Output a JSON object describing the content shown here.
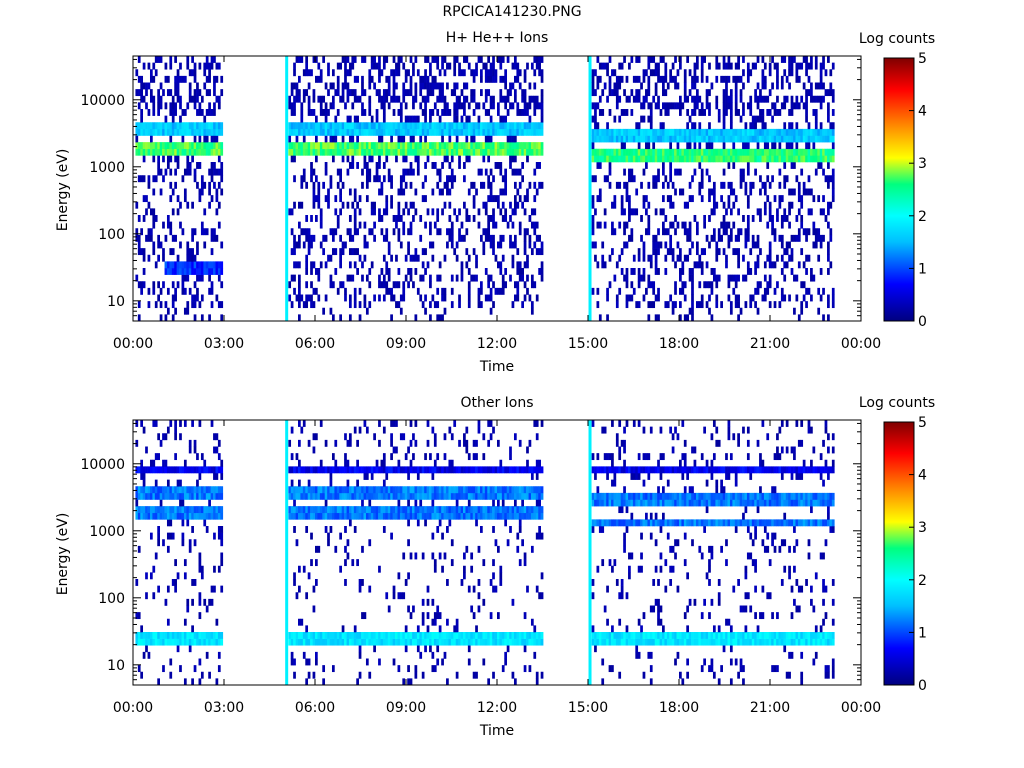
{
  "figure_title": "RPCICA141230.PNG",
  "colors": {
    "colormap": [
      "#00008b",
      "#0000ff",
      "#00bfff",
      "#00ffff",
      "#00ff7f",
      "#ffff00",
      "#ff8c00",
      "#ff0000",
      "#8b0000"
    ],
    "background": "#ffffff",
    "axis": "#000000"
  },
  "chart_data": [
    {
      "type": "heatmap",
      "title": "H+ He++ Ions",
      "xlabel": "Time",
      "ylabel": "Energy (eV)",
      "yscale": "log",
      "ylim": [
        5,
        45000
      ],
      "xlim": [
        0,
        24
      ],
      "x_tick_labels": [
        "00:00",
        "03:00",
        "06:00",
        "09:00",
        "12:00",
        "15:00",
        "18:00",
        "21:00",
        "00:00"
      ],
      "x_ticks_hours": [
        0,
        3,
        6,
        9,
        12,
        15,
        18,
        21,
        24
      ],
      "y_tick_labels": [
        "10",
        "100",
        "1000",
        "10000"
      ],
      "y_ticks": [
        10,
        100,
        1000,
        10000
      ],
      "colorbar": {
        "label": "Log counts",
        "min": 0,
        "max": 5,
        "tick_labels": [
          "0",
          "1",
          "2",
          "3",
          "4",
          "5"
        ]
      },
      "data_intervals_hours": [
        [
          0.05,
          2.9
        ],
        [
          5.1,
          13.45
        ],
        [
          15.05,
          23.1
        ]
      ],
      "spike_times_hours": [
        5.05,
        15.05
      ],
      "bands": [
        {
          "energy_eV": 1800,
          "level": 2.7,
          "intervals": [
            [
              0.05,
              2.9
            ],
            [
              5.1,
              13.45
            ]
          ]
        },
        {
          "energy_eV": 1500,
          "level": 2.6,
          "intervals": [
            [
              15.05,
              23.1
            ]
          ]
        },
        {
          "energy_eV": 4000,
          "level": 1.6,
          "intervals": [
            [
              0.05,
              2.9
            ],
            [
              5.1,
              13.45
            ]
          ]
        },
        {
          "energy_eV": 3000,
          "level": 1.6,
          "intervals": [
            [
              15.05,
              23.1
            ]
          ]
        },
        {
          "energy_eV": 30,
          "level": 0.9,
          "intervals": [
            [
              1.0,
              2.9
            ]
          ]
        }
      ],
      "noise_density": 0.45,
      "grid": false
    },
    {
      "type": "heatmap",
      "title": "Other Ions",
      "xlabel": "Time",
      "ylabel": "Energy (eV)",
      "yscale": "log",
      "ylim": [
        5,
        45000
      ],
      "xlim": [
        0,
        24
      ],
      "x_tick_labels": [
        "00:00",
        "03:00",
        "06:00",
        "09:00",
        "12:00",
        "15:00",
        "18:00",
        "21:00",
        "00:00"
      ],
      "x_ticks_hours": [
        0,
        3,
        6,
        9,
        12,
        15,
        18,
        21,
        24
      ],
      "y_tick_labels": [
        "10",
        "100",
        "1000",
        "10000"
      ],
      "y_ticks": [
        10,
        100,
        1000,
        10000
      ],
      "colorbar": {
        "label": "Log counts",
        "min": 0,
        "max": 5,
        "tick_labels": [
          "0",
          "1",
          "2",
          "3",
          "4",
          "5"
        ]
      },
      "data_intervals_hours": [
        [
          0.05,
          2.9
        ],
        [
          5.1,
          13.45
        ],
        [
          15.05,
          23.1
        ]
      ],
      "spike_times_hours": [
        5.05,
        15.05
      ],
      "bands": [
        {
          "energy_eV": 25,
          "level": 1.8,
          "intervals": [
            [
              0.05,
              2.9
            ],
            [
              5.1,
              13.45
            ],
            [
              15.05,
              23.1
            ]
          ]
        },
        {
          "energy_eV": 4000,
          "level": 1.2,
          "intervals": [
            [
              0.05,
              2.9
            ],
            [
              5.1,
              13.45
            ]
          ]
        },
        {
          "energy_eV": 3000,
          "level": 1.2,
          "intervals": [
            [
              15.05,
              23.1
            ]
          ]
        },
        {
          "energy_eV": 1700,
          "level": 1.2,
          "intervals": [
            [
              0.05,
              2.9
            ],
            [
              5.1,
              13.45
            ]
          ]
        },
        {
          "energy_eV": 1300,
          "level": 1.2,
          "intervals": [
            [
              15.05,
              23.1
            ]
          ]
        },
        {
          "energy_eV": 8000,
          "level": 0.6,
          "intervals": [
            [
              0.05,
              2.9
            ],
            [
              5.1,
              13.45
            ],
            [
              15.05,
              23.1
            ]
          ]
        }
      ],
      "noise_density": 0.18,
      "grid": false
    }
  ]
}
